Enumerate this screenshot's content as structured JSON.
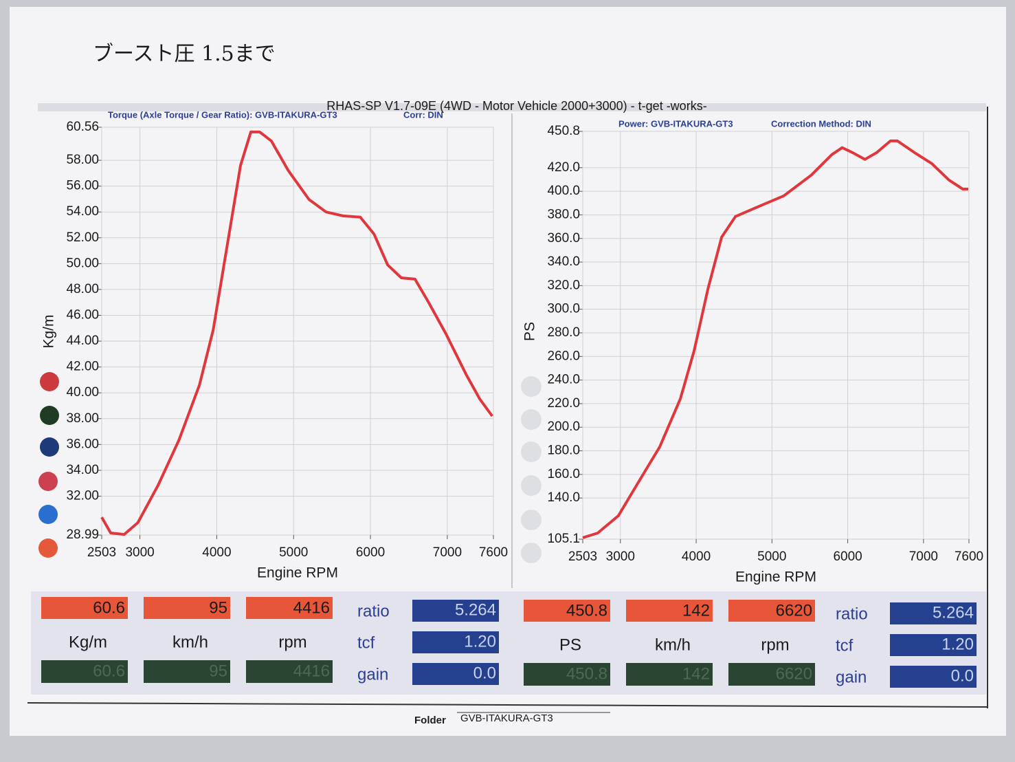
{
  "note": "ブースト圧 1.5まで",
  "header": {
    "title": "RHAS-SP V1.7-09E  (4WD - Motor Vehicle 2000+3000) - t-get -works-"
  },
  "chart_data": [
    {
      "type": "line",
      "source": "Torque (Axle Torque / Gear Ratio): GVB-ITAKURA-GT3",
      "correction": "Corr: DIN",
      "xlabel": "Engine RPM",
      "ylabel": "Kg/m",
      "color": "#e0373c",
      "grid": true,
      "x": [
        2503,
        2620,
        2795,
        2973,
        3240,
        3508,
        3775,
        3953,
        4131,
        4309,
        4443,
        4559,
        4710,
        4932,
        5200,
        5422,
        5645,
        5868,
        6046,
        6224,
        6402,
        6580,
        6758,
        6980,
        7247,
        7425,
        7585
      ],
      "values": [
        30.37,
        29.15,
        29.04,
        29.95,
        32.88,
        36.34,
        40.6,
        44.86,
        51.25,
        57.6,
        60.19,
        60.19,
        59.5,
        57.2,
        54.97,
        54.0,
        53.7,
        53.6,
        52.3,
        49.9,
        48.9,
        48.8,
        46.99,
        44.59,
        41.4,
        39.5,
        38.2
      ],
      "xlim": [
        2503,
        7600
      ],
      "xticks": [
        2503,
        3000,
        4000,
        5000,
        6000,
        7000,
        7600
      ],
      "ylim": [
        28.99,
        60.56
      ],
      "yticks": [
        28.99,
        {
          "value": 32,
          "label": "32.00"
        },
        {
          "value": 34,
          "label": "34.00"
        },
        {
          "value": 36,
          "label": "36.00"
        },
        {
          "value": 38,
          "label": "38.00"
        },
        {
          "value": 40,
          "label": "40.00"
        },
        {
          "value": 42,
          "label": "42.00"
        },
        {
          "value": 44,
          "label": "44.00"
        },
        {
          "value": 46,
          "label": "46.00"
        },
        {
          "value": 48,
          "label": "48.00"
        },
        {
          "value": 50,
          "label": "50.00"
        },
        {
          "value": 52,
          "label": "52.00"
        },
        {
          "value": 54,
          "label": "54.00"
        },
        {
          "value": 56,
          "label": "56.00"
        },
        {
          "value": 58,
          "label": "58.00"
        },
        60.56
      ]
    },
    {
      "type": "line",
      "source": "Power: GVB-ITAKURA-GT3",
      "correction": "Correction Method: DIN",
      "xlabel": "Engine RPM",
      "ylabel": "PS",
      "color": "#e0373c",
      "grid": true,
      "x": [
        2503,
        2700,
        2973,
        3245,
        3518,
        3791,
        3973,
        4155,
        4336,
        4518,
        4791,
        5155,
        5518,
        5791,
        5927,
        6064,
        6227,
        6382,
        6564,
        6655,
        6882,
        7109,
        7336,
        7518,
        7591
      ],
      "values": [
        106.3,
        110.3,
        124.9,
        154.1,
        183.2,
        224.0,
        264.9,
        317.3,
        361.1,
        378.6,
        386.2,
        396.1,
        413.6,
        431.1,
        437.0,
        432.8,
        427.0,
        432.8,
        442.7,
        442.7,
        432.8,
        423.5,
        409.5,
        401.9,
        401.9
      ],
      "xlim": [
        2503,
        7600
      ],
      "xticks": [
        2503,
        3000,
        4000,
        5000,
        6000,
        7000,
        7600
      ],
      "ylim": [
        105.1,
        450.8
      ],
      "yticks": [
        105.1,
        {
          "value": 140,
          "label": "140.0"
        },
        {
          "value": 160,
          "label": "160.0"
        },
        {
          "value": 180,
          "label": "180.0"
        },
        {
          "value": 200,
          "label": "200.0"
        },
        {
          "value": 220,
          "label": "220.0"
        },
        {
          "value": 240,
          "label": "240.0"
        },
        {
          "value": 260,
          "label": "260.0"
        },
        {
          "value": 280,
          "label": "280.0"
        },
        {
          "value": 300,
          "label": "300.0"
        },
        {
          "value": 320,
          "label": "320.0"
        },
        {
          "value": 340,
          "label": "340.0"
        },
        {
          "value": 360,
          "label": "360.0"
        },
        {
          "value": 380,
          "label": "380.0"
        },
        {
          "value": 400,
          "label": "400.0"
        },
        {
          "value": 420,
          "label": "420.0"
        },
        450.8
      ]
    }
  ],
  "readouts": [
    {
      "current": [
        "60.6",
        "95",
        "4416"
      ],
      "units": [
        "Kg/m",
        "km/h",
        "rpm"
      ],
      "hold": [
        "60.6",
        "95",
        "4416"
      ],
      "param_names": [
        "ratio",
        "tcf",
        "gain"
      ],
      "param_values": [
        "5.264",
        "1.20",
        "0.0"
      ]
    },
    {
      "current": [
        "450.8",
        "142",
        "6620"
      ],
      "units": [
        "PS",
        "km/h",
        "rpm"
      ],
      "hold": [
        "450.8",
        "142",
        "6620"
      ],
      "param_names": [
        "ratio",
        "tcf",
        "gain"
      ],
      "param_values": [
        "5.264",
        "1.20",
        "0.0"
      ]
    }
  ],
  "footer": {
    "label": "Folder",
    "value": "GVB-ITAKURA-GT3"
  }
}
